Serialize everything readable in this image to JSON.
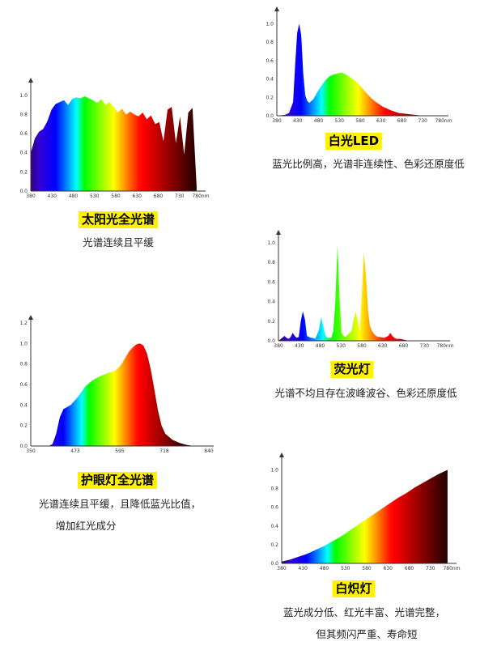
{
  "colors": {
    "title_highlight": "#fff200",
    "axis": "#333333"
  },
  "chart_data": [
    {
      "id": "sun",
      "type": "area",
      "title": "太阳光全光谱",
      "description": [
        "光谱连续且平缓"
      ],
      "x_tick_labels": [
        "380",
        "430",
        "480",
        "530",
        "580",
        "630",
        "680",
        "730",
        "780nm"
      ],
      "y_tick_labels": [
        "0.0",
        "0.2",
        "0.4",
        "0.6",
        "0.8",
        "1.0"
      ],
      "xlim": [
        380,
        790
      ],
      "ylim": [
        0,
        1.1
      ],
      "x": [
        380,
        390,
        400,
        410,
        420,
        430,
        440,
        450,
        460,
        470,
        480,
        490,
        500,
        510,
        520,
        530,
        540,
        550,
        560,
        570,
        580,
        590,
        600,
        610,
        620,
        630,
        640,
        650,
        660,
        670,
        680,
        690,
        700,
        710,
        720,
        730,
        740,
        750,
        760,
        770,
        780
      ],
      "y": [
        0.4,
        0.55,
        0.62,
        0.65,
        0.73,
        0.85,
        0.91,
        0.93,
        0.95,
        0.9,
        0.96,
        0.98,
        0.97,
        0.99,
        0.97,
        0.95,
        0.92,
        0.96,
        0.9,
        0.93,
        0.88,
        0.82,
        0.86,
        0.8,
        0.83,
        0.8,
        0.78,
        0.82,
        0.75,
        0.79,
        0.7,
        0.72,
        0.52,
        0.85,
        0.88,
        0.5,
        0.78,
        0.38,
        0.82,
        0.87,
        0.05
      ]
    },
    {
      "id": "led",
      "type": "area",
      "title": "白光LED",
      "description": [
        "蓝光比例高，光谱非连续性、色彩还原度低"
      ],
      "x_tick_labels": [
        "380",
        "430",
        "480",
        "530",
        "580",
        "630",
        "680",
        "730",
        "780nm"
      ],
      "y_tick_labels": [
        "0.0",
        "0.2",
        "0.4",
        "0.6",
        "0.8",
        "1.0"
      ],
      "xlim": [
        380,
        790
      ],
      "ylim": [
        0,
        1.1
      ],
      "x": [
        380,
        400,
        410,
        420,
        425,
        430,
        435,
        440,
        445,
        450,
        455,
        460,
        470,
        480,
        490,
        500,
        510,
        520,
        530,
        540,
        550,
        560,
        570,
        580,
        590,
        600,
        610,
        620,
        640,
        660,
        680,
        700,
        720,
        740,
        760,
        780
      ],
      "y": [
        0.0,
        0.01,
        0.03,
        0.15,
        0.55,
        0.9,
        1.0,
        0.88,
        0.45,
        0.22,
        0.16,
        0.14,
        0.18,
        0.26,
        0.33,
        0.39,
        0.43,
        0.45,
        0.46,
        0.47,
        0.45,
        0.42,
        0.39,
        0.35,
        0.3,
        0.25,
        0.2,
        0.16,
        0.1,
        0.06,
        0.03,
        0.02,
        0.01,
        0.0,
        0.0,
        0.0
      ]
    },
    {
      "id": "eye",
      "type": "area",
      "title": "护眼灯全光谱",
      "description": [
        "光谱连续且平缓，且降低蓝光比值，",
        "增加红光成分"
      ],
      "x_tick_labels": [
        "350",
        "473",
        "595",
        "718",
        "840"
      ],
      "y_tick_labels": [
        "0.0",
        "0.2",
        "0.4",
        "0.6",
        "0.8",
        "1.0",
        "1.2"
      ],
      "xlim": [
        350,
        840
      ],
      "ylim": [
        0,
        1.2
      ],
      "x": [
        350,
        400,
        410,
        420,
        430,
        440,
        450,
        460,
        470,
        480,
        500,
        520,
        540,
        560,
        580,
        590,
        600,
        610,
        620,
        630,
        640,
        650,
        660,
        670,
        680,
        690,
        700,
        710,
        720,
        740,
        760,
        780,
        800,
        820,
        840
      ],
      "y": [
        0.0,
        0.0,
        0.02,
        0.12,
        0.28,
        0.36,
        0.38,
        0.4,
        0.44,
        0.48,
        0.58,
        0.64,
        0.68,
        0.71,
        0.73,
        0.76,
        0.8,
        0.86,
        0.92,
        0.96,
        0.99,
        1.0,
        0.98,
        0.9,
        0.75,
        0.55,
        0.35,
        0.2,
        0.12,
        0.06,
        0.03,
        0.01,
        0.0,
        0.0,
        0.0
      ]
    },
    {
      "id": "fluor",
      "type": "area",
      "title": "荧光灯",
      "description": [
        "光谱不均且存在波峰波谷、色彩还原度低"
      ],
      "x_tick_labels": [
        "380",
        "430",
        "480",
        "530",
        "580",
        "630",
        "680",
        "730",
        "780nm"
      ],
      "y_tick_labels": [
        "0.0",
        "0.2",
        "0.4",
        "0.6",
        "0.8",
        "1.0"
      ],
      "xlim": [
        380,
        790
      ],
      "ylim": [
        0,
        1.05
      ],
      "x": [
        380,
        395,
        400,
        405,
        410,
        415,
        420,
        425,
        430,
        435,
        440,
        445,
        450,
        455,
        460,
        465,
        470,
        475,
        480,
        485,
        490,
        495,
        500,
        510,
        515,
        520,
        525,
        530,
        535,
        540,
        545,
        550,
        555,
        560,
        565,
        570,
        575,
        580,
        585,
        590,
        595,
        600,
        605,
        610,
        615,
        620,
        625,
        630,
        640,
        650,
        655,
        660,
        665,
        670,
        680,
        700,
        780
      ],
      "y": [
        0.0,
        0.05,
        0.03,
        0.02,
        0.04,
        0.08,
        0.05,
        0.03,
        0.04,
        0.2,
        0.3,
        0.22,
        0.05,
        0.04,
        0.03,
        0.03,
        0.02,
        0.06,
        0.12,
        0.24,
        0.15,
        0.06,
        0.03,
        0.03,
        0.1,
        0.4,
        0.98,
        0.45,
        0.08,
        0.05,
        0.04,
        0.06,
        0.08,
        0.1,
        0.22,
        0.3,
        0.2,
        0.1,
        0.48,
        0.9,
        0.68,
        0.32,
        0.15,
        0.1,
        0.07,
        0.05,
        0.04,
        0.04,
        0.03,
        0.05,
        0.08,
        0.05,
        0.03,
        0.02,
        0.02,
        0.0,
        0.0
      ]
    },
    {
      "id": "incand",
      "type": "area",
      "title": "白炽灯",
      "description": [
        "蓝光成分低、红光丰富、光谱完整，",
        "但其频闪严重、寿命短"
      ],
      "x_tick_labels": [
        "380",
        "430",
        "480",
        "530",
        "580",
        "630",
        "680",
        "730",
        "780nm"
      ],
      "y_tick_labels": [
        "0.0",
        "0.2",
        "0.4",
        "0.6",
        "0.8",
        "1.0"
      ],
      "xlim": [
        380,
        790
      ],
      "ylim": [
        0,
        1.1
      ],
      "x": [
        380,
        400,
        420,
        440,
        460,
        480,
        500,
        520,
        540,
        560,
        580,
        600,
        620,
        640,
        660,
        680,
        700,
        720,
        740,
        760,
        780
      ],
      "y": [
        0.02,
        0.04,
        0.07,
        0.1,
        0.14,
        0.18,
        0.23,
        0.28,
        0.34,
        0.4,
        0.46,
        0.52,
        0.58,
        0.64,
        0.7,
        0.75,
        0.81,
        0.86,
        0.91,
        0.96,
        1.0
      ]
    }
  ]
}
